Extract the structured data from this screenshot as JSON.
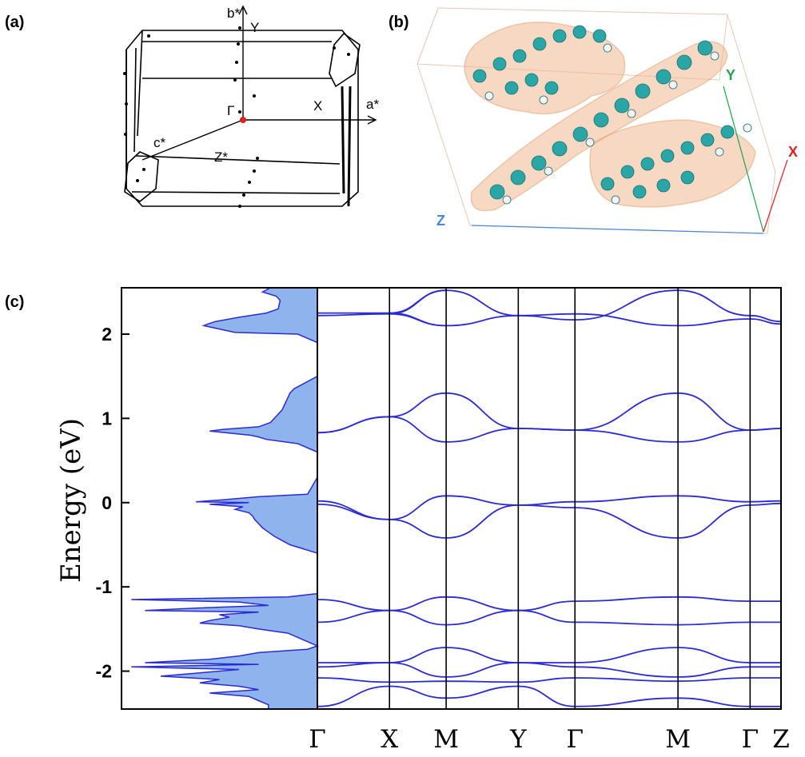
{
  "panels": {
    "a": "(a)",
    "b": "(b)",
    "c": "(c)"
  },
  "brillouin_zone": {
    "labels": [
      "b*",
      "Y",
      "Γ",
      "X",
      "a*",
      "c*",
      "Z*"
    ],
    "gamma_color": "#e02020"
  },
  "molecule": {
    "axes": [
      {
        "label": "Y",
        "color": "#22a34a"
      },
      {
        "label": "X",
        "color": "#e02020"
      },
      {
        "label": "Z",
        "color": "#4a86d8"
      }
    ],
    "colors": {
      "isosurface": "#f0b890",
      "carbon": "#2aa6a6",
      "hydrogen": "#f4f4f4",
      "box": "#e8c8b8"
    }
  },
  "chart_data": {
    "type": "line",
    "title": "",
    "ylabel": "Energy (eV)",
    "ylim": [
      -2.45,
      2.55
    ],
    "yticks": [
      2,
      1,
      0,
      -1,
      -2
    ],
    "ytick_labels": [
      "2",
      "1",
      "0",
      "-1",
      "-2"
    ],
    "kpath": {
      "labels": [
        "Γ",
        "X",
        "M",
        "Y",
        "Γ",
        "M",
        "Γ",
        "Z"
      ],
      "positions": [
        0,
        0.7,
        1.25,
        1.95,
        2.5,
        3.5,
        4.2,
        4.5
      ]
    },
    "band_color": "#2b2bd6",
    "dos_fill": "#8fb3ec",
    "dos_line": "#2b2bd6",
    "bands": [
      {
        "k": [
          0,
          0.7,
          1.25
        ],
        "e": [
          2.25,
          2.25,
          2.52
        ]
      },
      {
        "k": [
          0,
          0.7,
          1.25
        ],
        "e": [
          2.22,
          2.24,
          2.1
        ]
      },
      {
        "k": [
          0.7,
          1.25,
          1.95
        ],
        "e": [
          2.24,
          2.52,
          2.22
        ]
      },
      {
        "k": [
          0.7,
          1.25,
          1.95
        ],
        "e": [
          2.25,
          2.1,
          2.22
        ]
      },
      {
        "k": [
          1.95,
          2.5,
          3.5
        ],
        "e": [
          2.22,
          2.17,
          2.52
        ]
      },
      {
        "k": [
          1.95,
          2.5,
          3.5
        ],
        "e": [
          2.22,
          2.24,
          2.1
        ]
      },
      {
        "k": [
          3.5,
          4.2,
          4.5
        ],
        "e": [
          2.52,
          2.22,
          2.15
        ]
      },
      {
        "k": [
          3.5,
          4.2,
          4.5
        ],
        "e": [
          2.1,
          2.18,
          2.12
        ]
      },
      {
        "k": [
          0,
          0.7,
          1.25,
          1.95,
          2.5,
          3.5,
          4.2,
          4.5
        ],
        "e": [
          0.83,
          1.02,
          1.3,
          0.88,
          0.86,
          1.3,
          0.86,
          0.88
        ]
      },
      {
        "k": [
          0,
          0.7,
          1.25,
          1.95,
          2.5,
          3.5,
          4.2,
          4.5
        ],
        "e": [
          0.83,
          1.02,
          0.72,
          0.88,
          0.86,
          0.72,
          0.86,
          0.88
        ]
      },
      {
        "k": [
          0,
          0.7,
          1.25,
          1.95,
          2.5,
          3.5,
          4.2,
          4.5
        ],
        "e": [
          0.02,
          -0.2,
          0.08,
          -0.03,
          0.01,
          0.08,
          0.01,
          0.02
        ]
      },
      {
        "k": [
          0,
          0.7,
          1.25,
          1.95,
          2.5,
          3.5,
          4.2,
          4.5
        ],
        "e": [
          -0.02,
          -0.2,
          -0.42,
          -0.03,
          -0.06,
          -0.42,
          -0.03,
          -0.01
        ]
      },
      {
        "k": [
          0,
          0.7,
          1.25,
          1.95,
          2.5,
          3.5,
          4.2,
          4.5
        ],
        "e": [
          -1.15,
          -1.28,
          -1.12,
          -1.28,
          -1.17,
          -1.12,
          -1.17,
          -1.17
        ]
      },
      {
        "k": [
          0,
          0.7,
          1.25,
          1.95,
          2.5,
          3.5,
          4.2,
          4.5
        ],
        "e": [
          -1.42,
          -1.28,
          -1.45,
          -1.28,
          -1.42,
          -1.45,
          -1.42,
          -1.42
        ]
      },
      {
        "k": [
          0,
          0.7,
          1.25,
          1.95,
          2.5,
          3.5,
          4.2,
          4.5
        ],
        "e": [
          -1.9,
          -1.9,
          -1.72,
          -1.9,
          -1.9,
          -1.72,
          -1.9,
          -1.9
        ]
      },
      {
        "k": [
          0,
          0.7,
          1.25,
          1.95,
          2.5,
          3.5,
          4.2,
          4.5
        ],
        "e": [
          -1.95,
          -1.9,
          -2.07,
          -1.9,
          -1.95,
          -2.07,
          -1.95,
          -1.95
        ]
      },
      {
        "k": [
          0,
          0.7,
          1.25,
          1.95,
          2.5,
          3.5,
          4.2,
          4.5
        ],
        "e": [
          -2.08,
          -2.13,
          -2.12,
          -2.13,
          -2.08,
          -2.12,
          -2.08,
          -2.08
        ]
      },
      {
        "k": [
          0,
          0.7,
          1.25,
          1.95,
          2.5,
          3.5,
          4.2,
          4.5
        ],
        "e": [
          -2.42,
          -2.18,
          -2.32,
          -2.18,
          -2.42,
          -2.32,
          -2.42,
          -2.42
        ]
      }
    ],
    "dos": {
      "xmax": 1.0,
      "energy": [
        2.55,
        2.5,
        2.45,
        2.4,
        2.3,
        2.25,
        2.2,
        2.15,
        2.12,
        2.1,
        2.06,
        2.02,
        2.0,
        1.9,
        1.5,
        1.35,
        1.3,
        1.2,
        1.1,
        1.0,
        0.95,
        0.9,
        0.87,
        0.85,
        0.83,
        0.8,
        0.78,
        0.75,
        0.7,
        0.6,
        0.3,
        0.1,
        0.07,
        0.03,
        0.01,
        0.0,
        -0.02,
        -0.05,
        -0.08,
        -0.12,
        -0.16,
        -0.2,
        -0.25,
        -0.3,
        -0.35,
        -0.4,
        -0.45,
        -0.5,
        -0.6,
        -0.9,
        -1.08,
        -1.12,
        -1.15,
        -1.18,
        -1.22,
        -1.25,
        -1.28,
        -1.3,
        -1.33,
        -1.36,
        -1.4,
        -1.43,
        -1.46,
        -1.5,
        -1.55,
        -1.6,
        -1.7,
        -1.74,
        -1.78,
        -1.82,
        -1.86,
        -1.9,
        -1.92,
        -1.95,
        -1.98,
        -2.02,
        -2.06,
        -2.1,
        -2.14,
        -2.18,
        -2.22,
        -2.26,
        -2.3,
        -2.35,
        -2.4,
        -2.45
      ],
      "density": [
        0.24,
        0.28,
        0.21,
        0.19,
        0.2,
        0.26,
        0.4,
        0.52,
        0.56,
        0.58,
        0.5,
        0.42,
        0.1,
        0.0,
        0.0,
        0.12,
        0.14,
        0.16,
        0.18,
        0.22,
        0.24,
        0.3,
        0.48,
        0.55,
        0.47,
        0.34,
        0.3,
        0.26,
        0.1,
        0.0,
        0.0,
        0.05,
        0.3,
        0.5,
        0.62,
        0.35,
        0.55,
        0.38,
        0.42,
        0.35,
        0.33,
        0.32,
        0.3,
        0.28,
        0.25,
        0.22,
        0.18,
        0.14,
        0.0,
        0.0,
        0.0,
        0.15,
        0.95,
        0.4,
        0.25,
        0.6,
        0.88,
        0.3,
        0.5,
        0.45,
        0.55,
        0.6,
        0.4,
        0.3,
        0.15,
        0.1,
        0.0,
        0.05,
        0.3,
        0.4,
        0.55,
        0.88,
        0.3,
        0.95,
        0.4,
        0.6,
        0.8,
        0.5,
        0.6,
        0.4,
        0.3,
        0.55,
        0.35,
        0.3,
        0.25,
        0.25
      ]
    }
  }
}
